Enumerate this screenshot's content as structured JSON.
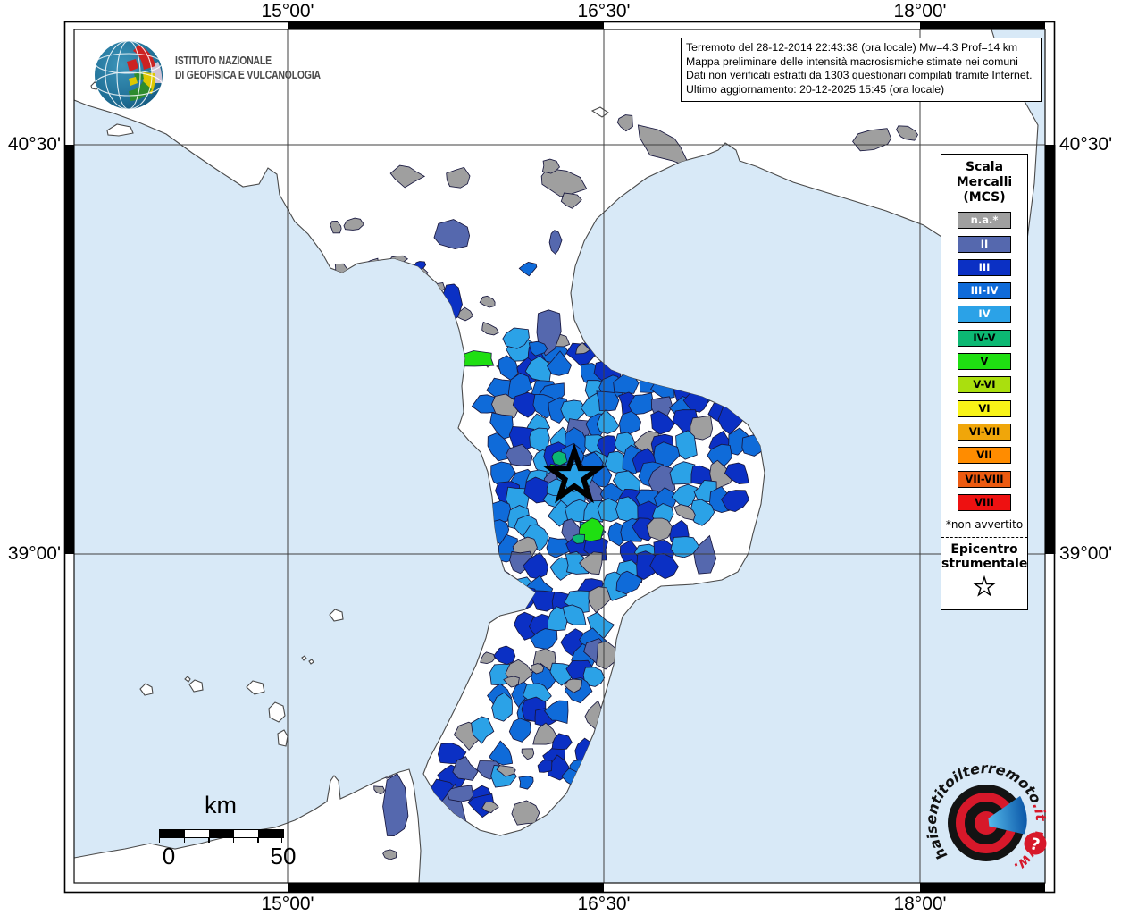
{
  "branding": {
    "institute_line1": "ISTITUTO NAZIONALE",
    "institute_line2": "DI GEOFISICA E VULCANOLOGIA"
  },
  "title_box": {
    "line1": "Terremoto del 28-12-2014 22:43:38 (ora locale) Mw=4.3 Prof=14 km",
    "line2": "Mappa preliminare delle intensità macrosismiche stimate nei comuni",
    "line3": "Dati non verificati estratti da 1303 questionari compilati tramite Internet.",
    "line4": "Ultimo aggiornamento: 20-12-2025 15:45 (ora locale)"
  },
  "axes": {
    "top": [
      "15°00'",
      "16°30'",
      "18°00'"
    ],
    "bottom": [
      "15°00'",
      "16°30'",
      "18°00'"
    ],
    "left": [
      "40°30'",
      "39°00'"
    ],
    "right": [
      "40°30'",
      "39°00'"
    ]
  },
  "legend": {
    "title_line1": "Scala",
    "title_line2": "Mercalli",
    "title_line3": "(MCS)",
    "items": [
      {
        "key": "na",
        "label": "n.a.*",
        "color": "#9F9F9F",
        "text_color": "#FFFFFF"
      },
      {
        "key": "II",
        "label": "II",
        "color": "#5568AE",
        "text_color": "#FFFFFF"
      },
      {
        "key": "III",
        "label": "III",
        "color": "#0B30C4",
        "text_color": "#FFFFFF"
      },
      {
        "key": "III-IV",
        "label": "III-IV",
        "color": "#0F6BD9",
        "text_color": "#FFFFFF"
      },
      {
        "key": "IV",
        "label": "IV",
        "color": "#2BA2E7",
        "text_color": "#FFFFFF"
      },
      {
        "key": "IV-V",
        "label": "IV-V",
        "color": "#0CB873",
        "text_color": "#000000"
      },
      {
        "key": "V",
        "label": "V",
        "color": "#1FDF12",
        "text_color": "#000000"
      },
      {
        "key": "V-VI",
        "label": "V-VI",
        "color": "#AADF0E",
        "text_color": "#000000"
      },
      {
        "key": "VI",
        "label": "VI",
        "color": "#F8F317",
        "text_color": "#000000"
      },
      {
        "key": "VI-VII",
        "label": "VI-VII",
        "color": "#F0A60A",
        "text_color": "#000000"
      },
      {
        "key": "VII",
        "label": "VII",
        "color": "#FF8C00",
        "text_color": "#000000"
      },
      {
        "key": "VII-VIII",
        "label": "VII-VIII",
        "color": "#EC5A10",
        "text_color": "#000000"
      },
      {
        "key": "VIII",
        "label": "VIII",
        "color": "#EE1111",
        "text_color": "#000000"
      }
    ],
    "footnote": "*non avvertito",
    "epicenter_line1": "Epicentro",
    "epicenter_line2": "strumentale",
    "epicenter_symbol": "☆"
  },
  "scalebar": {
    "unit": "km",
    "start_label": "0",
    "end_label": "50"
  },
  "watermark": {
    "site_main": "haisentito",
    "site_sep": "il",
    "site_word": "terremoto",
    "site_tld": ".it",
    "site_prefix": "www.",
    "question_mark": "?"
  },
  "map": {
    "sea_color": "#D8E9F7",
    "land_color": "#FFFFFF",
    "coast_color": "#4A4A4A",
    "cell_border_color": "#17173F",
    "grid_color": "#3F3F3F",
    "epicenter_star_color": "#000000"
  }
}
